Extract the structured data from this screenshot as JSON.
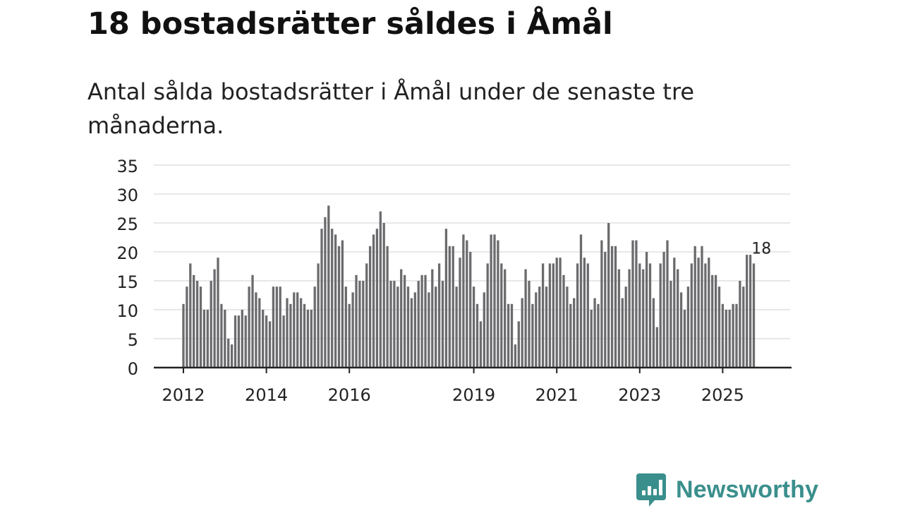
{
  "header": {
    "title": "18 bostadsrätter såldes i Åmål",
    "subtitle": "Antal sålda bostadsrätter i Åmål under de senaste tre månaderna."
  },
  "brand": {
    "name": "Newsworthy"
  },
  "colors": {
    "bar": "#6b6b6e",
    "highlight": "#1aa6a6",
    "grid": "#d9d9d9",
    "axis": "#222222",
    "brand": "#3a8f8c"
  },
  "chart_data": {
    "type": "bar",
    "title": "18 bostadsrätter såldes i Åmål",
    "subtitle": "Antal sålda bostadsrätter i Åmål under de senaste tre månaderna.",
    "xlabel": "",
    "ylabel": "",
    "ylim": [
      0,
      35
    ],
    "yticks": [
      0,
      5,
      10,
      15,
      20,
      25,
      30,
      35
    ],
    "grid": true,
    "x_start": "2012-01",
    "xtick_labels": [
      {
        "label": "2012",
        "index": 0
      },
      {
        "label": "2014",
        "index": 24
      },
      {
        "label": "2016",
        "index": 48
      },
      {
        "label": "2019",
        "index": 84
      },
      {
        "label": "2021",
        "index": 108
      },
      {
        "label": "2023",
        "index": 132
      },
      {
        "label": "2025",
        "index": 156
      }
    ],
    "values": [
      11,
      14,
      18,
      16,
      15,
      14,
      10,
      10,
      15,
      17,
      19,
      11,
      10,
      5,
      4,
      9,
      9,
      10,
      9,
      14,
      16,
      13,
      12,
      10,
      9,
      8,
      14,
      14,
      14,
      9,
      12,
      11,
      13,
      13,
      12,
      11,
      10,
      10,
      14,
      18,
      24,
      26,
      28,
      24,
      23,
      21,
      22,
      14,
      11,
      13,
      16,
      15,
      15,
      18,
      21,
      23,
      24,
      27,
      25,
      21,
      15,
      15,
      14,
      17,
      16,
      14,
      12,
      13,
      15,
      16,
      16,
      13,
      17,
      14,
      18,
      15,
      24,
      21,
      21,
      14,
      19,
      23,
      22,
      20,
      14,
      11,
      8,
      13,
      18,
      23,
      23,
      22,
      18,
      17,
      11,
      11,
      4,
      8,
      12,
      17,
      15,
      11,
      13,
      14,
      18,
      14,
      18,
      18,
      19,
      19,
      16,
      14,
      11,
      12,
      18,
      23,
      19,
      18,
      10,
      12,
      11,
      22,
      20,
      25,
      21,
      21,
      17,
      12,
      14,
      17,
      22,
      22,
      18,
      17,
      20,
      18,
      12,
      7,
      18,
      20,
      22,
      15,
      19,
      17,
      13,
      10,
      14,
      18,
      21,
      19,
      21,
      18,
      19,
      16,
      16,
      14,
      11,
      10,
      10,
      11,
      11,
      15,
      14,
      19.5,
      19.5,
      18
    ],
    "highlight": {
      "index": 167,
      "value": 18,
      "label": "18"
    }
  }
}
